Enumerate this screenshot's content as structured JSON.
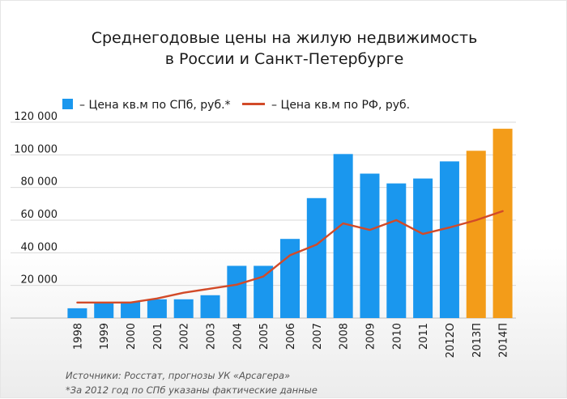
{
  "title_line1": "Среднегодовые цены на жилую недвижимость",
  "title_line2": "в России и Санкт-Петербурге",
  "legend": {
    "bar_label": "– Цена кв.м по СПб, руб.*",
    "line_label": "– Цена кв.м по РФ, руб."
  },
  "notes": {
    "source": "Источники: Росстат, прогнозы УК «Арсагера»",
    "footnote": "*За 2012 год по СПб указаны фактические данные"
  },
  "colors": {
    "bar_actual": "#1a97ee",
    "bar_forecast": "#f39c19",
    "line": "#d24a28",
    "grid": "#d9d9d9"
  },
  "chart_data": {
    "type": "bar",
    "categories": [
      "1998",
      "1999",
      "2000",
      "2001",
      "2002",
      "2003",
      "2004",
      "2005",
      "2006",
      "2007",
      "2008",
      "2009",
      "2010",
      "2011",
      "2012О",
      "2013П",
      "2014П"
    ],
    "series": [
      {
        "name": "Цена кв.м по СПб, руб.*",
        "type": "bar",
        "values": [
          6000,
          9500,
          10000,
          11500,
          11500,
          14000,
          32000,
          32000,
          48500,
          73500,
          100500,
          88500,
          82500,
          85500,
          96000,
          102500,
          116000
        ],
        "forecast": [
          false,
          false,
          false,
          false,
          false,
          false,
          false,
          false,
          false,
          false,
          false,
          false,
          false,
          false,
          false,
          true,
          true
        ]
      },
      {
        "name": "Цена кв.м по РФ, руб.",
        "type": "line",
        "values": [
          9500,
          9500,
          9500,
          12000,
          15500,
          18000,
          20500,
          25500,
          38500,
          45000,
          58000,
          54000,
          60000,
          51500,
          55500,
          60000,
          65500
        ]
      }
    ],
    "yticks": [
      20000,
      40000,
      60000,
      80000,
      100000,
      120000
    ],
    "ytick_labels": [
      "20 000",
      "40 000",
      "60 000",
      "80 000",
      "100 000",
      "120 000"
    ],
    "ylim": [
      0,
      120000
    ],
    "grid": true,
    "legend_position": "top-left"
  }
}
